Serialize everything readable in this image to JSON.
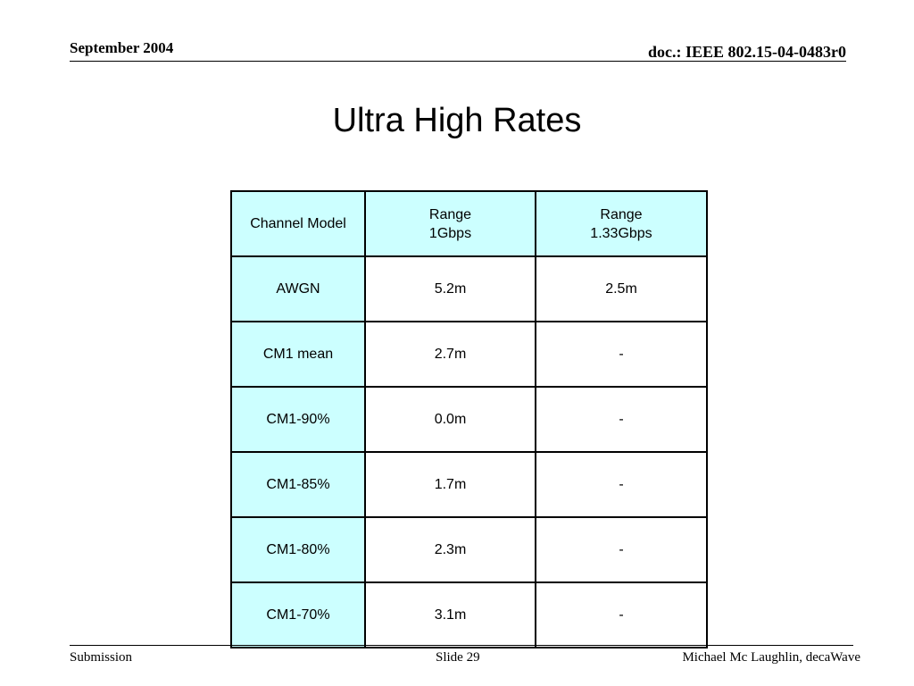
{
  "header": {
    "date": "September 2004",
    "doc_id": "doc.: IEEE 802.15-04-0483r0"
  },
  "slide": {
    "title": "Ultra High Rates"
  },
  "table": {
    "columns": [
      {
        "line1": "Channel Model",
        "line2": ""
      },
      {
        "line1": "Range",
        "line2": "1Gbps"
      },
      {
        "line1": "Range",
        "line2": "1.33Gbps"
      }
    ],
    "rows": [
      {
        "model": "AWGN",
        "range_1gbps": "5.2m",
        "range_133gbps": "2.5m"
      },
      {
        "model": "CM1 mean",
        "range_1gbps": "2.7m",
        "range_133gbps": "-"
      },
      {
        "model": "CM1-90%",
        "range_1gbps": "0.0m",
        "range_133gbps": "-"
      },
      {
        "model": "CM1-85%",
        "range_1gbps": "1.7m",
        "range_133gbps": "-"
      },
      {
        "model": "CM1-80%",
        "range_1gbps": "2.3m",
        "range_133gbps": "-"
      },
      {
        "model": "CM1-70%",
        "range_1gbps": "3.1m",
        "range_133gbps": "-"
      }
    ]
  },
  "footer": {
    "left": "Submission",
    "center": "Slide 29",
    "right": "Michael Mc Laughlin, decaWave"
  },
  "colors": {
    "header_fill": "#ccffff",
    "body_fill": "#ffffff",
    "border": "#000000"
  }
}
